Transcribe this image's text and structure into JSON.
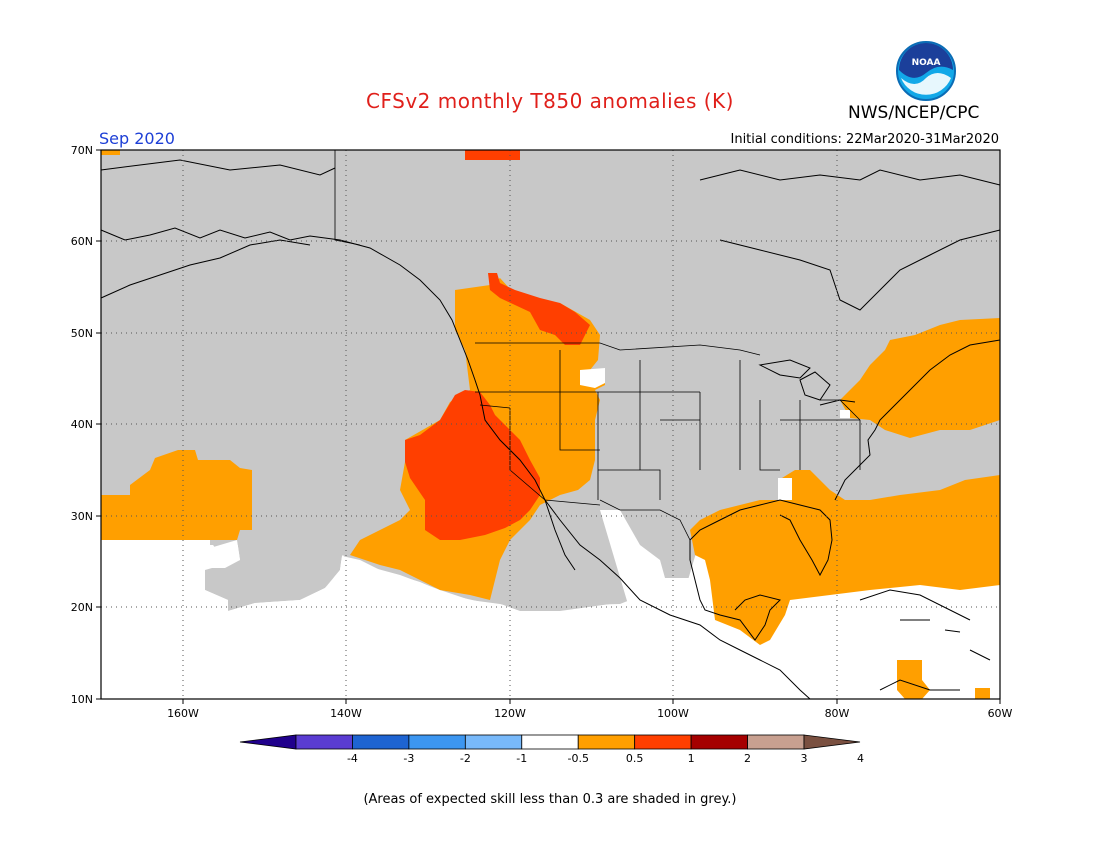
{
  "title": "CFSv2 monthly T850 anomalies (K)",
  "agency": "NWS/NCEP/CPC",
  "logo_text": "NOAA",
  "period_label": "Sep 2020",
  "initial_conditions": "Initial conditions: 22Mar2020-31Mar2020",
  "footnote": "(Areas of expected skill less than 0.3 are shaded in grey.)",
  "map": {
    "lat_labels": [
      "10N",
      "20N",
      "30N",
      "40N",
      "50N",
      "60N",
      "70N"
    ],
    "lon_labels": [
      "160W",
      "140W",
      "120W",
      "100W",
      "80W",
      "60W"
    ]
  },
  "colors": {
    "no_skill_grey": "#c8c8c8",
    "land_outline": "#000000",
    "anom_0p5_1": "#ff9f00",
    "anom_1_2": "#ff3f00",
    "anom_2_3": "#a50000"
  },
  "legend": {
    "ticks": [
      "-4",
      "-3",
      "-2",
      "-1",
      "-0.5",
      "0.5",
      "1",
      "2",
      "3",
      "4"
    ],
    "colors": [
      "#20008c",
      "#5a3cd2",
      "#1e64d2",
      "#3c96f0",
      "#78b9fa",
      "#ffffff",
      "#ff9f00",
      "#ff3f00",
      "#a50000",
      "#c8a090",
      "#7a5040"
    ]
  }
}
